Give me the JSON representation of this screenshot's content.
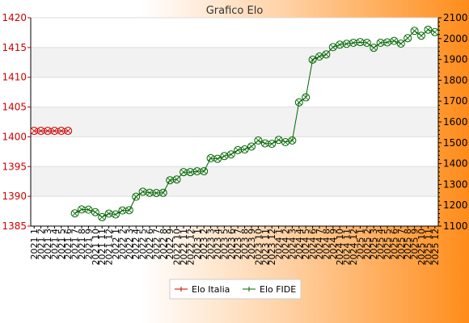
{
  "chart_data": {
    "type": "line",
    "title": "Grafico Elo",
    "x": [
      "2021 1",
      "2021 2",
      "2021 3",
      "2021 4",
      "2021 5",
      "2021 6",
      "2021 7",
      "2021 8",
      "2021 9",
      "2021 10",
      "2021 11",
      "2021 12",
      "2022 1",
      "2022 2",
      "2022 3",
      "2022 4",
      "2022 5",
      "2022 6",
      "2022 7",
      "2022 8",
      "2022 9",
      "2022 10",
      "2022 11",
      "2022 12",
      "2023 1",
      "2023 2",
      "2023 3",
      "2023 4",
      "2023 5",
      "2023 6",
      "2023 7",
      "2023 8",
      "2023 9",
      "2023 10",
      "2023 11",
      "2023 12",
      "2024 1",
      "2024 2",
      "2024 3",
      "2024 4",
      "2024 5",
      "2024 6",
      "2024 7",
      "2024 8",
      "2024 9",
      "2024 10",
      "2024 11",
      "2024 12",
      "2025 1",
      "2025 2",
      "2025 3",
      "2025 4",
      "2025 5",
      "2025 6",
      "2025 7",
      "2025 8",
      "2025 9",
      "2025 10",
      "2025 11",
      "2025 12"
    ],
    "series": [
      {
        "name": "Elo Italia",
        "axis": "left",
        "color": "#cc0000",
        "values": [
          1401,
          1401,
          1401,
          1401,
          1401,
          1401,
          null,
          null,
          null,
          null,
          null,
          null,
          null,
          null,
          null,
          null,
          null,
          null,
          null,
          null,
          null,
          null,
          null,
          null,
          null,
          null,
          null,
          null,
          null,
          null,
          null,
          null,
          null,
          null,
          null,
          null,
          null,
          null,
          null,
          null,
          null,
          null,
          null,
          null,
          null,
          null,
          null,
          null,
          null,
          null,
          null,
          null,
          null,
          null,
          null,
          null,
          null,
          null,
          null,
          null
        ]
      },
      {
        "name": "Elo FIDE",
        "axis": "right",
        "color": "#006600",
        "values": [
          null,
          null,
          null,
          null,
          null,
          null,
          1161,
          1180,
          1179,
          1167,
          1143,
          1160,
          1156,
          1175,
          1176,
          1241,
          1265,
          1260,
          1259,
          1260,
          1320,
          1324,
          1359,
          1359,
          1363,
          1363,
          1426,
          1423,
          1436,
          1444,
          1465,
          1468,
          1482,
          1511,
          1497,
          1495,
          1514,
          1503,
          1511,
          1694,
          1718,
          1899,
          1914,
          1924,
          1959,
          1971,
          1975,
          1980,
          1983,
          1980,
          1956,
          1980,
          1982,
          1989,
          1976,
          2002,
          2037,
          2014,
          2043,
          2031
        ]
      }
    ],
    "yleft": {
      "ylim": [
        1385,
        1420
      ],
      "ticks": [
        1385,
        1390,
        1395,
        1400,
        1405,
        1410,
        1415,
        1420
      ]
    },
    "yright": {
      "ylim": [
        1100,
        2100
      ],
      "ticks": [
        1100,
        1200,
        1300,
        1400,
        1500,
        1600,
        1700,
        1800,
        1900,
        2000,
        2100
      ]
    },
    "grid": true,
    "legend": "bottom-center",
    "colors": {
      "left_axis": "#cc0000",
      "right_axis": "#000000",
      "bg_white": "#ffffff",
      "bg_band": "#f2f2f2",
      "gradient_end": "#ff8c1a"
    }
  }
}
